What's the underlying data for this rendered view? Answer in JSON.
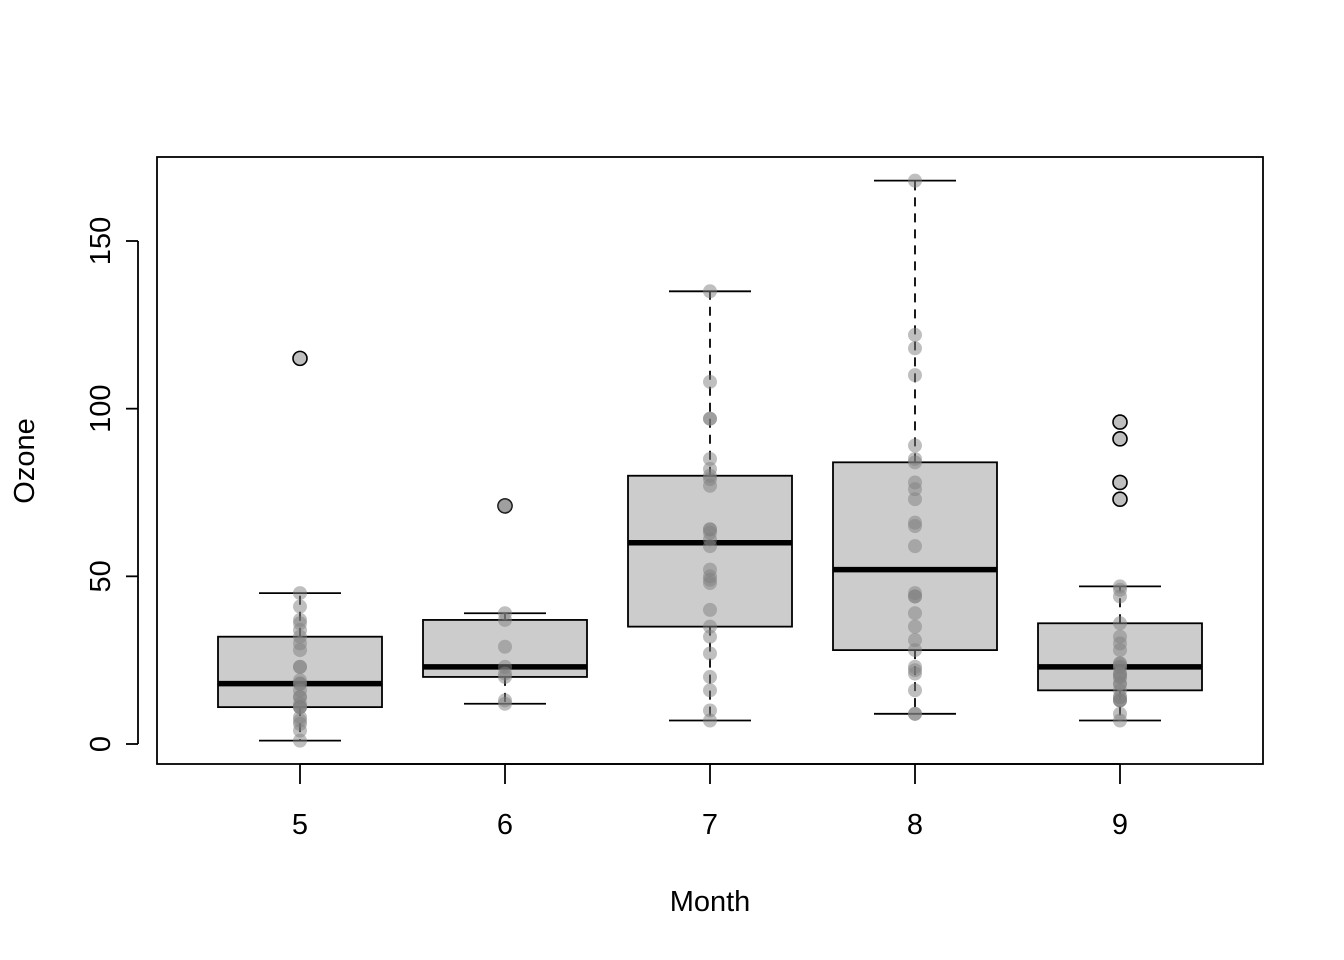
{
  "chart_data": {
    "type": "box",
    "title": "",
    "xlabel": "Month",
    "ylabel": "Ozone",
    "ylim": [
      -6,
      174
    ],
    "yticks": [
      0,
      50,
      100,
      150
    ],
    "categories": [
      "5",
      "6",
      "7",
      "8",
      "9"
    ],
    "grid": false,
    "legend": "none",
    "colors": {
      "box_fill": "#cccccc",
      "point_fill": "#808080",
      "outlier_fill": "#bfbfbf",
      "line": "#000000"
    },
    "boxes": [
      {
        "category": "5",
        "lower_whisker": 1,
        "q1": 11,
        "median": 18,
        "q3": 32,
        "upper_whisker": 45,
        "outliers": [
          115
        ],
        "points": [
          41,
          36,
          12,
          18,
          28,
          23,
          19,
          8,
          7,
          16,
          11,
          14,
          18,
          14,
          34,
          6,
          30,
          11,
          1,
          11,
          4,
          32,
          23,
          45,
          37
        ]
      },
      {
        "category": "6",
        "lower_whisker": 12,
        "q1": 20,
        "median": 23,
        "q3": 37,
        "upper_whisker": 39,
        "outliers": [
          71
        ],
        "points": [
          29,
          71,
          39,
          23,
          21,
          37,
          20,
          12,
          13
        ]
      },
      {
        "category": "7",
        "lower_whisker": 7,
        "q1": 35,
        "median": 60,
        "q3": 80,
        "upper_whisker": 135,
        "outliers": [],
        "points": [
          135,
          49,
          32,
          64,
          40,
          77,
          97,
          97,
          85,
          10,
          27,
          7,
          48,
          35,
          61,
          79,
          63,
          16,
          80,
          108,
          20,
          52,
          82,
          50,
          64,
          59
        ]
      },
      {
        "category": "8",
        "lower_whisker": 9,
        "q1": 28,
        "median": 52,
        "q3": 84,
        "upper_whisker": 168,
        "outliers": [],
        "points": [
          39,
          9,
          16,
          78,
          35,
          66,
          122,
          89,
          110,
          44,
          28,
          65,
          22,
          59,
          23,
          31,
          44,
          21,
          9,
          45,
          168,
          73,
          76,
          118,
          84,
          85
        ]
      },
      {
        "category": "9",
        "lower_whisker": 7,
        "q1": 16,
        "median": 23,
        "q3": 36,
        "upper_whisker": 47,
        "outliers": [
          96,
          78,
          73,
          91
        ],
        "points": [
          47,
          32,
          20,
          23,
          21,
          24,
          44,
          21,
          28,
          9,
          13,
          46,
          18,
          13,
          24,
          16,
          13,
          23,
          36,
          7,
          14,
          30,
          14,
          18,
          20
        ]
      }
    ]
  }
}
